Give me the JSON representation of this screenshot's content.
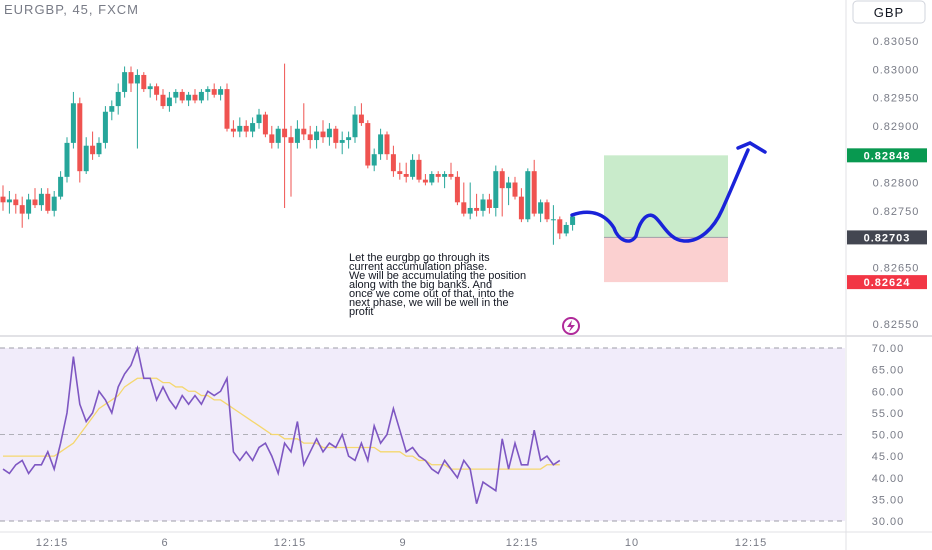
{
  "symbol_title": "EURGBP, 45, FXCM",
  "currency_button": "GBP",
  "price_tags": {
    "target": "0.82848",
    "current": "0.82703",
    "stop": "0.82624"
  },
  "annotation": {
    "lines": [
      "Let the eurgbp go through its",
      "current accumulation phase.",
      "We will be accumulating the position",
      "along with the big banks.  And",
      "once we come out of that, into the",
      "next phase, we will be well in the",
      "profit"
    ]
  },
  "colors": {
    "up": "#26a69a",
    "down": "#ef5350",
    "target_zone": "#c9ebcb",
    "stop_zone": "#fbd0d0",
    "rsi_line": "#7e57c2",
    "rsi_ma": "#f5d76e",
    "rsi_band": "#f1ecfa",
    "drawing": "#1a23d9",
    "tag_green": "#089950",
    "tag_red": "#f23645",
    "tag_gray": "#434651"
  },
  "icons": {
    "logo": "lightning-bolt-icon"
  },
  "chart_data": [
    {
      "type": "candlestick",
      "title": "EURGBP, 45, FXCM",
      "ylim": [
        0.8251,
        0.8308
      ],
      "y_ticks": [
        "0.83050",
        "0.83000",
        "0.82950",
        "0.82900",
        "0.82800",
        "0.82750",
        "0.82650",
        "0.82550"
      ],
      "x_ticks": [
        "12:15",
        "6",
        "12:15",
        "9",
        "12:15",
        "10",
        "12:15"
      ],
      "candles": [
        {
          "o": 0.82775,
          "h": 0.82795,
          "l": 0.8275,
          "c": 0.82765
        },
        {
          "o": 0.82765,
          "h": 0.82785,
          "l": 0.82745,
          "c": 0.8277
        },
        {
          "o": 0.8277,
          "h": 0.8278,
          "l": 0.82745,
          "c": 0.8276
        },
        {
          "o": 0.8276,
          "h": 0.82775,
          "l": 0.8272,
          "c": 0.82745
        },
        {
          "o": 0.82745,
          "h": 0.8278,
          "l": 0.82735,
          "c": 0.8277
        },
        {
          "o": 0.8277,
          "h": 0.8279,
          "l": 0.82755,
          "c": 0.8276
        },
        {
          "o": 0.8276,
          "h": 0.8279,
          "l": 0.8275,
          "c": 0.8278
        },
        {
          "o": 0.8278,
          "h": 0.8279,
          "l": 0.82745,
          "c": 0.8275
        },
        {
          "o": 0.8275,
          "h": 0.82785,
          "l": 0.8274,
          "c": 0.82775
        },
        {
          "o": 0.82775,
          "h": 0.8282,
          "l": 0.8277,
          "c": 0.8281
        },
        {
          "o": 0.8281,
          "h": 0.8288,
          "l": 0.828,
          "c": 0.8287
        },
        {
          "o": 0.8287,
          "h": 0.8296,
          "l": 0.8286,
          "c": 0.8294
        },
        {
          "o": 0.8294,
          "h": 0.8295,
          "l": 0.828,
          "c": 0.8282
        },
        {
          "o": 0.8282,
          "h": 0.8288,
          "l": 0.82815,
          "c": 0.82865
        },
        {
          "o": 0.82865,
          "h": 0.8289,
          "l": 0.8284,
          "c": 0.8285
        },
        {
          "o": 0.8285,
          "h": 0.8288,
          "l": 0.82845,
          "c": 0.8287
        },
        {
          "o": 0.8287,
          "h": 0.82935,
          "l": 0.8286,
          "c": 0.82925
        },
        {
          "o": 0.82925,
          "h": 0.82945,
          "l": 0.8291,
          "c": 0.82935
        },
        {
          "o": 0.82935,
          "h": 0.82975,
          "l": 0.8292,
          "c": 0.8296
        },
        {
          "o": 0.8296,
          "h": 0.83005,
          "l": 0.8295,
          "c": 0.82995
        },
        {
          "o": 0.82995,
          "h": 0.83005,
          "l": 0.8296,
          "c": 0.82975
        },
        {
          "o": 0.82975,
          "h": 0.83,
          "l": 0.8286,
          "c": 0.8299
        },
        {
          "o": 0.8299,
          "h": 0.82995,
          "l": 0.8296,
          "c": 0.82965
        },
        {
          "o": 0.82965,
          "h": 0.82975,
          "l": 0.8295,
          "c": 0.8297
        },
        {
          "o": 0.8297,
          "h": 0.82975,
          "l": 0.82945,
          "c": 0.82955
        },
        {
          "o": 0.82955,
          "h": 0.82965,
          "l": 0.8293,
          "c": 0.82935
        },
        {
          "o": 0.82935,
          "h": 0.8296,
          "l": 0.82925,
          "c": 0.8295
        },
        {
          "o": 0.8295,
          "h": 0.82965,
          "l": 0.8294,
          "c": 0.8296
        },
        {
          "o": 0.8296,
          "h": 0.82965,
          "l": 0.8294,
          "c": 0.82945
        },
        {
          "o": 0.82945,
          "h": 0.8296,
          "l": 0.82935,
          "c": 0.82955
        },
        {
          "o": 0.82955,
          "h": 0.82965,
          "l": 0.8294,
          "c": 0.82945
        },
        {
          "o": 0.82945,
          "h": 0.82965,
          "l": 0.8294,
          "c": 0.8296
        },
        {
          "o": 0.8296,
          "h": 0.8297,
          "l": 0.82945,
          "c": 0.82965
        },
        {
          "o": 0.82965,
          "h": 0.82975,
          "l": 0.8295,
          "c": 0.82955
        },
        {
          "o": 0.82955,
          "h": 0.8297,
          "l": 0.82945,
          "c": 0.82965
        },
        {
          "o": 0.82965,
          "h": 0.82975,
          "l": 0.8289,
          "c": 0.82895
        },
        {
          "o": 0.82895,
          "h": 0.8291,
          "l": 0.8288,
          "c": 0.8289
        },
        {
          "o": 0.8289,
          "h": 0.82915,
          "l": 0.8288,
          "c": 0.829
        },
        {
          "o": 0.829,
          "h": 0.8291,
          "l": 0.8288,
          "c": 0.8289
        },
        {
          "o": 0.8289,
          "h": 0.82915,
          "l": 0.8288,
          "c": 0.82905
        },
        {
          "o": 0.82905,
          "h": 0.8293,
          "l": 0.82895,
          "c": 0.8292
        },
        {
          "o": 0.8292,
          "h": 0.82925,
          "l": 0.8288,
          "c": 0.82885
        },
        {
          "o": 0.82885,
          "h": 0.829,
          "l": 0.8286,
          "c": 0.8287
        },
        {
          "o": 0.8287,
          "h": 0.829,
          "l": 0.8286,
          "c": 0.82895
        },
        {
          "o": 0.82895,
          "h": 0.8301,
          "l": 0.82755,
          "c": 0.8288
        },
        {
          "o": 0.8288,
          "h": 0.829,
          "l": 0.82775,
          "c": 0.8287
        },
        {
          "o": 0.8287,
          "h": 0.8291,
          "l": 0.8286,
          "c": 0.82895
        },
        {
          "o": 0.82895,
          "h": 0.8294,
          "l": 0.82875,
          "c": 0.82885
        },
        {
          "o": 0.82885,
          "h": 0.829,
          "l": 0.8286,
          "c": 0.82875
        },
        {
          "o": 0.82875,
          "h": 0.829,
          "l": 0.8286,
          "c": 0.8289
        },
        {
          "o": 0.8289,
          "h": 0.8291,
          "l": 0.8287,
          "c": 0.8288
        },
        {
          "o": 0.8288,
          "h": 0.82905,
          "l": 0.82865,
          "c": 0.82895
        },
        {
          "o": 0.82895,
          "h": 0.829,
          "l": 0.8286,
          "c": 0.8287
        },
        {
          "o": 0.8287,
          "h": 0.8289,
          "l": 0.8285,
          "c": 0.82875
        },
        {
          "o": 0.82875,
          "h": 0.8289,
          "l": 0.8286,
          "c": 0.8288
        },
        {
          "o": 0.8288,
          "h": 0.82935,
          "l": 0.8287,
          "c": 0.8292
        },
        {
          "o": 0.8292,
          "h": 0.8294,
          "l": 0.829,
          "c": 0.82905
        },
        {
          "o": 0.82905,
          "h": 0.8291,
          "l": 0.82825,
          "c": 0.8283
        },
        {
          "o": 0.8283,
          "h": 0.8286,
          "l": 0.8282,
          "c": 0.8285
        },
        {
          "o": 0.8285,
          "h": 0.82895,
          "l": 0.8284,
          "c": 0.82885
        },
        {
          "o": 0.82885,
          "h": 0.8289,
          "l": 0.8284,
          "c": 0.8285
        },
        {
          "o": 0.8285,
          "h": 0.82865,
          "l": 0.8281,
          "c": 0.8282
        },
        {
          "o": 0.8282,
          "h": 0.82835,
          "l": 0.82805,
          "c": 0.82815
        },
        {
          "o": 0.82815,
          "h": 0.82835,
          "l": 0.828,
          "c": 0.8281
        },
        {
          "o": 0.8281,
          "h": 0.8285,
          "l": 0.82805,
          "c": 0.8284
        },
        {
          "o": 0.8284,
          "h": 0.8285,
          "l": 0.828,
          "c": 0.82805
        },
        {
          "o": 0.82805,
          "h": 0.82815,
          "l": 0.82795,
          "c": 0.828
        },
        {
          "o": 0.828,
          "h": 0.8282,
          "l": 0.82795,
          "c": 0.82815
        },
        {
          "o": 0.82815,
          "h": 0.8282,
          "l": 0.828,
          "c": 0.8281
        },
        {
          "o": 0.8281,
          "h": 0.8282,
          "l": 0.8279,
          "c": 0.82815
        },
        {
          "o": 0.82815,
          "h": 0.82835,
          "l": 0.82805,
          "c": 0.8281
        },
        {
          "o": 0.8281,
          "h": 0.8282,
          "l": 0.8276,
          "c": 0.82765
        },
        {
          "o": 0.82765,
          "h": 0.828,
          "l": 0.8274,
          "c": 0.82745
        },
        {
          "o": 0.82745,
          "h": 0.828,
          "l": 0.82735,
          "c": 0.82755
        },
        {
          "o": 0.82755,
          "h": 0.8278,
          "l": 0.8274,
          "c": 0.8275
        },
        {
          "o": 0.8275,
          "h": 0.8278,
          "l": 0.8274,
          "c": 0.8277
        },
        {
          "o": 0.8277,
          "h": 0.8278,
          "l": 0.82745,
          "c": 0.82755
        },
        {
          "o": 0.82755,
          "h": 0.8283,
          "l": 0.8274,
          "c": 0.8282
        },
        {
          "o": 0.8282,
          "h": 0.82825,
          "l": 0.8274,
          "c": 0.8279
        },
        {
          "o": 0.8279,
          "h": 0.8281,
          "l": 0.8276,
          "c": 0.828
        },
        {
          "o": 0.828,
          "h": 0.8281,
          "l": 0.8277,
          "c": 0.82775
        },
        {
          "o": 0.82775,
          "h": 0.8279,
          "l": 0.8273,
          "c": 0.82735
        },
        {
          "o": 0.82735,
          "h": 0.82825,
          "l": 0.8273,
          "c": 0.8282
        },
        {
          "o": 0.8282,
          "h": 0.8284,
          "l": 0.8274,
          "c": 0.82745
        },
        {
          "o": 0.82745,
          "h": 0.8277,
          "l": 0.8273,
          "c": 0.82765
        },
        {
          "o": 0.82765,
          "h": 0.8277,
          "l": 0.8273,
          "c": 0.82735
        },
        {
          "o": 0.82735,
          "h": 0.8276,
          "l": 0.8269,
          "c": 0.82735
        },
        {
          "o": 0.82735,
          "h": 0.8274,
          "l": 0.827,
          "c": 0.8271
        },
        {
          "o": 0.8271,
          "h": 0.8273,
          "l": 0.82705,
          "c": 0.82725
        },
        {
          "o": 0.82725,
          "h": 0.82745,
          "l": 0.82715,
          "c": 0.8274
        }
      ],
      "trade_setup": {
        "entry": 0.82703,
        "target": 0.82848,
        "stop": 0.82624
      }
    },
    {
      "type": "line",
      "ylim": [
        28,
        72
      ],
      "y_ticks": [
        "70.00",
        "65.00",
        "60.00",
        "55.00",
        "50.00",
        "45.00",
        "40.00",
        "35.00",
        "30.00"
      ],
      "band": [
        30,
        70
      ],
      "midline": 50,
      "series": [
        {
          "values": [
            42,
            41,
            43,
            44,
            41,
            43,
            43,
            46,
            42,
            48,
            55,
            68,
            57,
            53,
            55,
            60,
            58,
            55,
            61,
            64,
            66,
            70,
            63,
            63,
            58,
            61,
            58,
            56,
            59,
            57,
            59,
            57,
            60,
            59,
            60,
            63,
            46,
            44,
            46,
            44,
            47,
            48,
            45,
            41,
            48,
            46,
            53,
            43,
            46,
            49,
            46,
            48,
            47,
            50,
            45,
            44,
            48,
            44,
            52,
            48,
            50,
            56,
            51,
            46,
            47,
            45,
            44,
            42,
            41,
            44,
            42,
            40,
            44,
            42,
            34,
            39,
            38,
            37,
            49,
            42,
            48,
            43,
            43,
            51,
            44,
            45,
            43,
            44
          ]
        },
        {
          "values": [
            45,
            45,
            45,
            45,
            45,
            45,
            45,
            45,
            45,
            46,
            47,
            48,
            50,
            52,
            54,
            56,
            57,
            58,
            59,
            61,
            62,
            63,
            63,
            63,
            63,
            62,
            62,
            61,
            61,
            60,
            60,
            59,
            59,
            58,
            58,
            57,
            56,
            55,
            54,
            53,
            52,
            51,
            50,
            50,
            49,
            49,
            49,
            48,
            48,
            48,
            47,
            47,
            47,
            47,
            47,
            47,
            47,
            47,
            47,
            46,
            46,
            46,
            46,
            45,
            45,
            44,
            44,
            43,
            43,
            43,
            42,
            42,
            42,
            42,
            42,
            42,
            42,
            42,
            42,
            42,
            42,
            42,
            42,
            42,
            42,
            43,
            43,
            43
          ]
        }
      ]
    }
  ]
}
